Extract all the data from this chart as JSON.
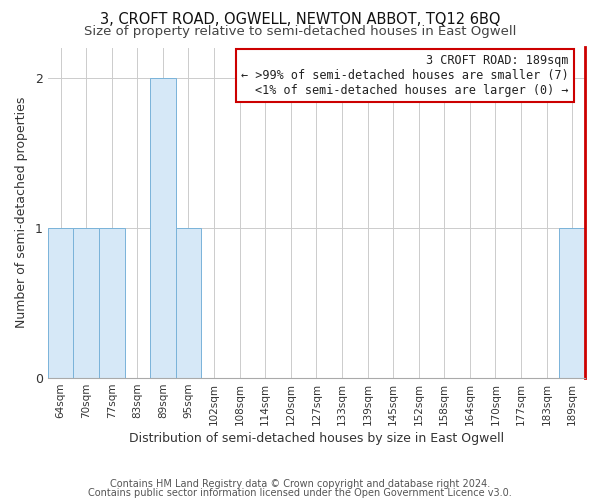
{
  "title": "3, CROFT ROAD, OGWELL, NEWTON ABBOT, TQ12 6BQ",
  "subtitle": "Size of property relative to semi-detached houses in East Ogwell",
  "xlabel": "Distribution of semi-detached houses by size in East Ogwell",
  "ylabel": "Number of semi-detached properties",
  "footer_line1": "Contains HM Land Registry data © Crown copyright and database right 2024.",
  "footer_line2": "Contains public sector information licensed under the Open Government Licence v3.0.",
  "bins": [
    "64sqm",
    "70sqm",
    "77sqm",
    "83sqm",
    "89sqm",
    "95sqm",
    "102sqm",
    "108sqm",
    "114sqm",
    "120sqm",
    "127sqm",
    "133sqm",
    "139sqm",
    "145sqm",
    "152sqm",
    "158sqm",
    "164sqm",
    "170sqm",
    "177sqm",
    "183sqm",
    "189sqm"
  ],
  "values": [
    1,
    1,
    1,
    0,
    2,
    1,
    0,
    0,
    0,
    0,
    0,
    0,
    0,
    0,
    0,
    0,
    0,
    0,
    0,
    0,
    1
  ],
  "bar_color": "#d6e8f7",
  "bar_edge_color": "#7ab3d9",
  "subject_index": 20,
  "subject_right_color": "#cc0000",
  "annotation_line1": "3 CROFT ROAD: 189sqm",
  "annotation_line2": "← >99% of semi-detached houses are smaller (7)",
  "annotation_line3": "<1% of semi-detached houses are larger (0) →",
  "annotation_box_color": "#cc0000",
  "ylim": [
    0,
    2.2
  ],
  "yticks": [
    0,
    1,
    2
  ],
  "background_color": "#ffffff",
  "title_fontsize": 10.5,
  "subtitle_fontsize": 9.5,
  "annotation_fontsize": 8.5
}
